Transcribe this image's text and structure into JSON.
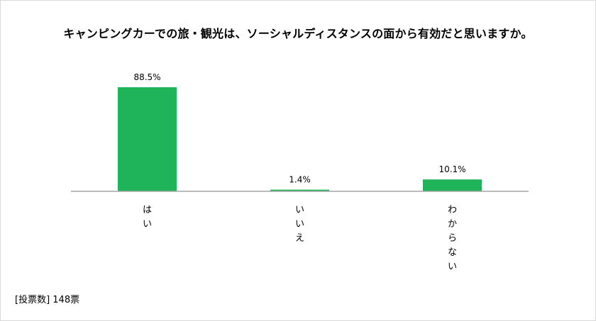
{
  "chart_data": {
    "type": "bar",
    "title": "キャンピングカーでの旅・観光は、ソーシャルディスタンスの面から有効だと思いますか。",
    "categories": [
      "はい",
      "いいえ",
      "わからない"
    ],
    "values": [
      88.5,
      1.4,
      10.1
    ],
    "value_labels": [
      "88.5%",
      "1.4%",
      "10.1%"
    ],
    "ylim": [
      0,
      100
    ],
    "grid": false,
    "bar_color": "#1fb35a",
    "axis_color": "#a6a6a6"
  },
  "footnote": "[投票数] 148票"
}
